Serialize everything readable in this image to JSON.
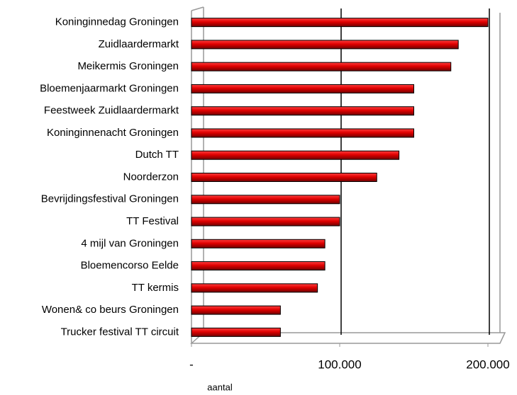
{
  "chart_data": {
    "type": "bar",
    "orientation": "horizontal",
    "categories": [
      "Koninginnedag Groningen",
      "Zuidlaardermarkt",
      "Meikermis Groningen",
      "Bloemenjaarmarkt Groningen",
      "Feestweek Zuidlaardermarkt",
      "Koninginnenacht Groningen",
      "Dutch TT",
      "Noorderzon",
      "Bevrijdingsfestival Groningen",
      "TT Festival",
      "4 mijl van Groningen",
      "Bloemencorso Eelde",
      "TT kermis",
      "Wonen& co beurs Groningen",
      "Trucker festival TT circuit"
    ],
    "values": [
      200000,
      180000,
      175000,
      150000,
      150000,
      150000,
      140000,
      125000,
      100000,
      100000,
      90000,
      90000,
      85000,
      60000,
      60000
    ],
    "color": "#e00000",
    "xlim": [
      0,
      200000
    ],
    "xticks": [
      {
        "value": 0,
        "label": "-"
      },
      {
        "value": 100000,
        "label": "100.000"
      },
      {
        "value": 200000,
        "label": "200.000"
      }
    ],
    "xlabel": "aantal",
    "grid": true
  }
}
